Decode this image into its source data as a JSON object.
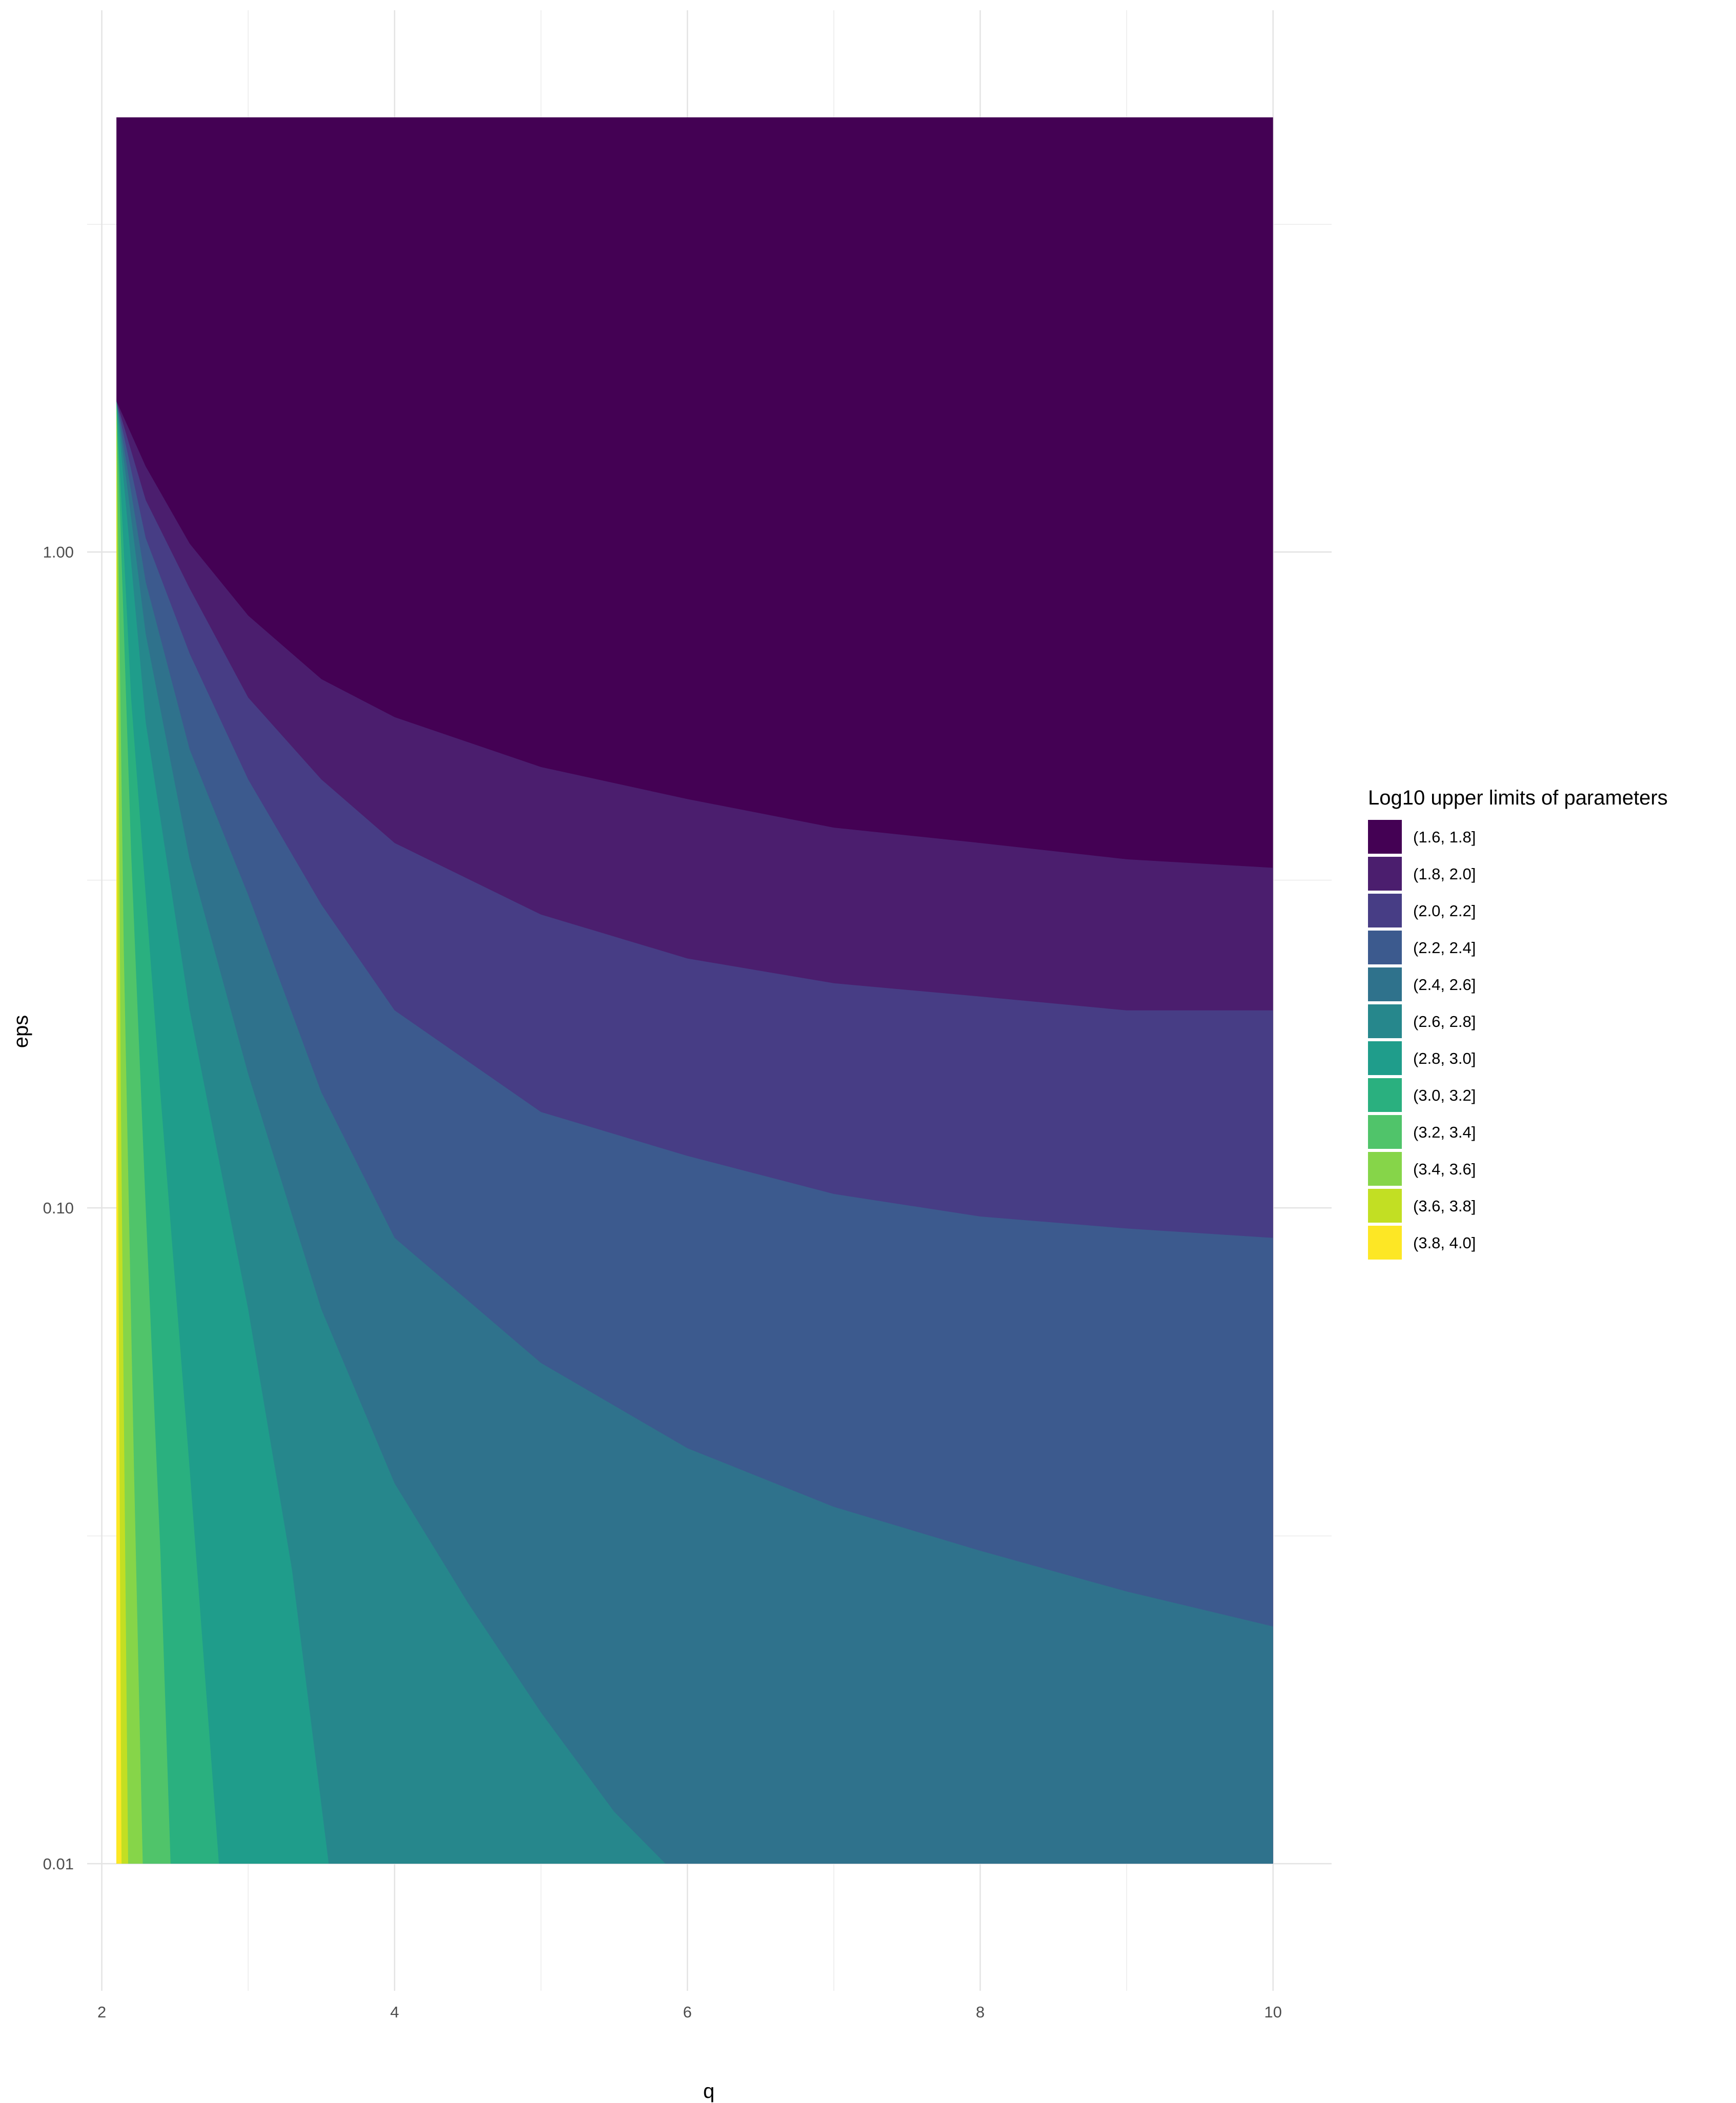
{
  "chart_data": {
    "type": "filled-contour",
    "title": "",
    "xlabel": "q",
    "ylabel": "eps",
    "x_scale": "linear",
    "y_scale": "log10",
    "xlim": [
      1.9,
      10.4
    ],
    "ylim": [
      0.0064,
      6.7
    ],
    "data_xrange": [
      2.1,
      10
    ],
    "data_yrange": [
      0.01,
      4.6
    ],
    "x_ticks": [
      2,
      4,
      6,
      8,
      10
    ],
    "x_tick_labels": [
      "2",
      "4",
      "6",
      "8",
      "10"
    ],
    "y_ticks": [
      0.01,
      0.1,
      1
    ],
    "y_tick_labels": [
      "0.01",
      "0.10",
      "1.00"
    ],
    "x_minor_ticks": [
      3,
      5,
      7,
      9
    ],
    "y_minor_ticks": [
      0.0316,
      0.316,
      3.16
    ],
    "grid": true,
    "legend": {
      "title": "Log10 upper limits of parameters",
      "position": "right",
      "entries": [
        {
          "label": "(1.6, 1.8]",
          "color": "#440154"
        },
        {
          "label": "(1.8, 2.0]",
          "color": "#4B1E6E"
        },
        {
          "label": "(2.0, 2.2]",
          "color": "#473D85"
        },
        {
          "label": "(2.2, 2.4]",
          "color": "#3C5A8E"
        },
        {
          "label": "(2.4, 2.6]",
          "color": "#2F728C"
        },
        {
          "label": "(2.6, 2.8]",
          "color": "#26878C"
        },
        {
          "label": "(2.8, 3.0]",
          "color": "#1F9D8B"
        },
        {
          "label": "(3.0, 3.2]",
          "color": "#2AB07F"
        },
        {
          "label": "(3.2, 3.4]",
          "color": "#50C46A"
        },
        {
          "label": "(3.4, 3.6]",
          "color": "#86D549"
        },
        {
          "label": "(3.6, 3.8]",
          "color": "#C2DF23"
        },
        {
          "label": "(3.8, 4.0]",
          "color": "#FDE725"
        }
      ]
    },
    "boundaries": [
      {
        "between": "(1.6, 1.8] / (1.8, 2.0]",
        "points": [
          [
            2.1,
            1.7
          ],
          [
            2.3,
            1.35
          ],
          [
            2.6,
            1.03
          ],
          [
            3,
            0.8
          ],
          [
            3.5,
            0.64
          ],
          [
            4,
            0.56
          ],
          [
            5,
            0.47
          ],
          [
            6,
            0.42
          ],
          [
            7,
            0.38
          ],
          [
            8,
            0.36
          ],
          [
            9,
            0.34
          ],
          [
            10,
            0.33
          ]
        ]
      },
      {
        "between": "(1.8, 2.0] / (2.0, 2.2]",
        "points": [
          [
            2.1,
            1.7
          ],
          [
            2.3,
            1.2
          ],
          [
            2.6,
            0.88
          ],
          [
            3,
            0.6
          ],
          [
            3.5,
            0.45
          ],
          [
            4,
            0.36
          ],
          [
            5,
            0.28
          ],
          [
            6,
            0.24
          ],
          [
            7,
            0.22
          ],
          [
            8,
            0.21
          ],
          [
            9,
            0.2
          ],
          [
            10,
            0.2
          ]
        ]
      },
      {
        "between": "(2.0, 2.2] / (2.2, 2.4]",
        "points": [
          [
            2.1,
            1.7
          ],
          [
            2.3,
            1.05
          ],
          [
            2.6,
            0.7
          ],
          [
            3,
            0.45
          ],
          [
            3.5,
            0.29
          ],
          [
            4,
            0.2
          ],
          [
            5,
            0.14
          ],
          [
            6,
            0.12
          ],
          [
            7,
            0.105
          ],
          [
            8,
            0.097
          ],
          [
            9,
            0.093
          ],
          [
            10,
            0.09
          ]
        ]
      },
      {
        "between": "(2.2, 2.4] / (2.4, 2.6]",
        "points": [
          [
            2.1,
            1.7
          ],
          [
            2.3,
            0.9
          ],
          [
            2.6,
            0.5
          ],
          [
            3,
            0.3
          ],
          [
            3.5,
            0.15
          ],
          [
            4,
            0.09
          ],
          [
            5,
            0.058
          ],
          [
            6,
            0.043
          ],
          [
            7,
            0.035
          ],
          [
            8,
            0.03
          ],
          [
            9,
            0.026
          ],
          [
            10,
            0.023
          ]
        ]
      },
      {
        "between": "(2.4, 2.6] / (2.6, 2.8]",
        "points": [
          [
            2.1,
            1.7
          ],
          [
            2.3,
            0.75
          ],
          [
            2.6,
            0.34
          ],
          [
            3,
            0.16
          ],
          [
            3.5,
            0.07
          ],
          [
            4,
            0.038
          ],
          [
            4.5,
            0.025
          ],
          [
            5,
            0.017
          ],
          [
            5.5,
            0.012
          ],
          [
            5.85,
            0.01
          ]
        ]
      },
      {
        "between": "(2.6, 2.8] / (2.8, 3.0]",
        "points": [
          [
            2.1,
            1.7
          ],
          [
            2.3,
            0.55
          ],
          [
            2.6,
            0.2
          ],
          [
            3,
            0.07
          ],
          [
            3.3,
            0.028
          ],
          [
            3.55,
            0.01
          ]
        ]
      },
      {
        "between": "(2.8, 3.0] / (3.0, 3.2]",
        "points": [
          [
            2.1,
            1.7
          ],
          [
            2.2,
            0.6
          ],
          [
            2.4,
            0.15
          ],
          [
            2.6,
            0.04
          ],
          [
            2.8,
            0.01
          ]
        ]
      },
      {
        "between": "(3.0, 3.2] / (3.2, 3.4]",
        "points": [
          [
            2.1,
            1.7
          ],
          [
            2.2,
            0.35
          ],
          [
            2.3,
            0.1
          ],
          [
            2.4,
            0.03
          ],
          [
            2.47,
            0.01
          ]
        ]
      },
      {
        "between": "(3.2, 3.4] / (3.4, 3.6]",
        "points": [
          [
            2.1,
            1.7
          ],
          [
            2.15,
            0.25
          ],
          [
            2.22,
            0.04
          ],
          [
            2.28,
            0.01
          ]
        ]
      },
      {
        "between": "(3.4, 3.6] / (3.6, 3.8]",
        "points": [
          [
            2.1,
            1.7
          ],
          [
            2.13,
            0.15
          ],
          [
            2.18,
            0.01
          ]
        ]
      },
      {
        "between": "(3.6, 3.8] / (3.8, 4.0]",
        "points": [
          [
            2.1,
            1.7
          ],
          [
            2.11,
            0.12
          ],
          [
            2.135,
            0.01
          ]
        ]
      }
    ]
  }
}
